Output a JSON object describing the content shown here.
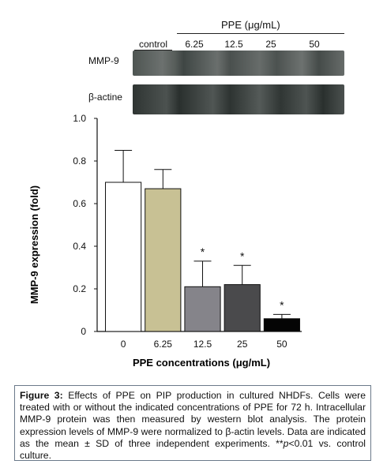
{
  "blot": {
    "group_label": "PPE (μg/mL)",
    "lanes": [
      "control",
      "6.25",
      "12.5",
      "25",
      "50"
    ],
    "rows": [
      "MMP-9",
      "β-actine"
    ]
  },
  "chart_data": {
    "type": "bar",
    "categories": [
      "0",
      "6.25",
      "12.5",
      "25",
      "50"
    ],
    "values": [
      0.7,
      0.67,
      0.21,
      0.22,
      0.06
    ],
    "errors": [
      0.15,
      0.09,
      0.12,
      0.09,
      0.02
    ],
    "significance": [
      "",
      "",
      "*",
      "*",
      "*"
    ],
    "bar_colors": [
      "#ffffff",
      "#c8c194",
      "#85848a",
      "#4a4a4c",
      "#050505"
    ],
    "xlabel": "PPE concentrations (μg/mL)",
    "ylabel": "MMP-9 expression (fold)",
    "ylim": [
      0,
      1.0
    ],
    "yticks": [
      "0",
      "0.2",
      "0.4",
      "0.6",
      "0.8",
      "1.0"
    ]
  },
  "caption": {
    "label": "Figure 3:",
    "text_before_p": " Effects of PPE on PIP production in cultured NHDFs. Cells were treated with or without the indicated concentrations of PPE for 72 h. Intracellular MMP-9 protein was then measured by western blot analysis. The protein expression levels of MMP-9 were normalized to β-actin levels. Data are indicated as the mean ± SD of three independent experiments. **",
    "p_italic": "p",
    "text_after_p": "<0.01 vs. control culture."
  }
}
